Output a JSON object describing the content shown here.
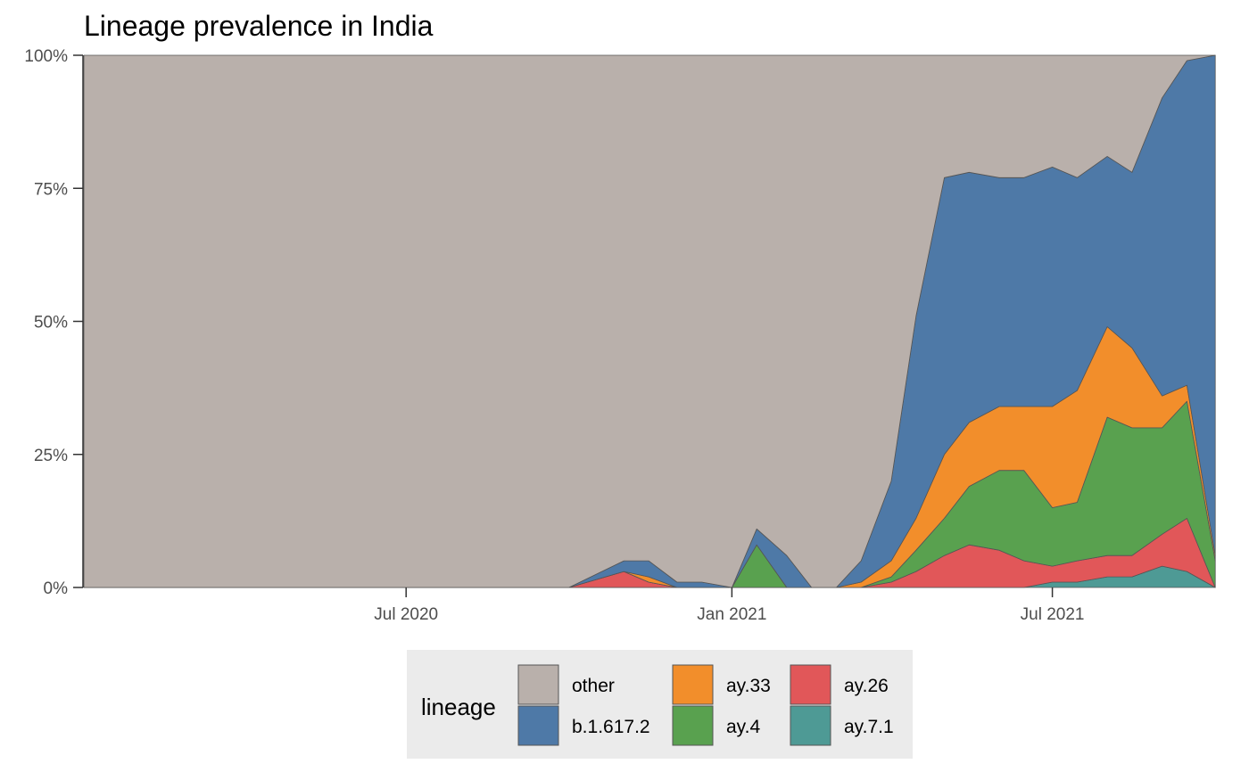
{
  "chart_data": {
    "type": "area",
    "stacked": true,
    "normalized": true,
    "title": "Lineage prevalence in India",
    "xlabel": "",
    "ylabel": "",
    "x_range": [
      "2020-01-01",
      "2021-10-12"
    ],
    "xticks": [
      {
        "date": "2020-07-01",
        "label": "Jul 2020"
      },
      {
        "date": "2021-01-01",
        "label": "Jan 2021"
      },
      {
        "date": "2021-07-01",
        "label": "Jul 2021"
      }
    ],
    "yticks": [
      {
        "value": 0,
        "label": "0%"
      },
      {
        "value": 25,
        "label": "25%"
      },
      {
        "value": 50,
        "label": "50%"
      },
      {
        "value": 75,
        "label": "75%"
      },
      {
        "value": 100,
        "label": "100%"
      }
    ],
    "ylim": [
      0,
      100
    ],
    "grid": false,
    "legend": {
      "title": "lineage",
      "position": "bottom",
      "entries": [
        {
          "name": "other",
          "color": "#B9B0AB"
        },
        {
          "name": "b.1.617.2",
          "color": "#4E79A7"
        },
        {
          "name": "ay.33",
          "color": "#F28E2B"
        },
        {
          "name": "ay.4",
          "color": "#59A14F"
        },
        {
          "name": "ay.26",
          "color": "#E15759"
        },
        {
          "name": "ay.7.1",
          "color": "#4E9A95"
        }
      ]
    },
    "x": [
      "2020-01-01",
      "2020-02-01",
      "2020-03-01",
      "2020-04-01",
      "2020-05-01",
      "2020-06-01",
      "2020-07-01",
      "2020-08-01",
      "2020-09-01",
      "2020-10-01",
      "2020-11-01",
      "2020-11-15",
      "2020-12-01",
      "2020-12-15",
      "2021-01-01",
      "2021-01-15",
      "2021-02-01",
      "2021-02-15",
      "2021-03-01",
      "2021-03-15",
      "2021-04-01",
      "2021-04-15",
      "2021-05-01",
      "2021-05-15",
      "2021-06-01",
      "2021-06-15",
      "2021-07-01",
      "2021-07-15",
      "2021-08-01",
      "2021-08-15",
      "2021-09-01",
      "2021-09-15",
      "2021-10-01"
    ],
    "series": [
      {
        "name": "ay.7.1",
        "values": [
          0,
          0,
          0,
          0,
          0,
          0,
          0,
          0,
          0,
          0,
          0,
          0,
          0,
          0,
          0,
          0,
          0,
          0,
          0,
          0,
          0,
          0,
          0,
          0,
          0,
          0,
          1,
          1,
          2,
          2,
          4,
          3,
          0
        ]
      },
      {
        "name": "ay.26",
        "values": [
          0,
          0,
          0,
          0,
          0,
          0,
          0,
          0,
          0,
          0,
          3,
          1,
          0,
          0,
          0,
          0,
          0,
          0,
          0,
          0,
          1,
          3,
          6,
          8,
          7,
          5,
          3,
          4,
          4,
          4,
          6,
          10,
          0
        ]
      },
      {
        "name": "ay.4",
        "values": [
          0,
          0,
          0,
          0,
          0,
          0,
          0,
          0,
          0,
          0,
          0,
          0,
          0,
          0,
          0,
          8,
          0,
          0,
          0,
          0,
          1,
          4,
          7,
          11,
          15,
          17,
          11,
          11,
          26,
          24,
          20,
          22,
          5
        ]
      },
      {
        "name": "ay.33",
        "values": [
          0,
          0,
          0,
          0,
          0,
          0,
          0,
          0,
          0,
          0,
          0,
          1,
          0,
          0,
          0,
          0,
          0,
          0,
          0,
          1,
          3,
          6,
          12,
          12,
          12,
          12,
          19,
          21,
          17,
          15,
          6,
          3,
          1
        ]
      },
      {
        "name": "b.1.617.2",
        "values": [
          0,
          0,
          0,
          0,
          0,
          0,
          0,
          0,
          0,
          0,
          2,
          3,
          1,
          1,
          0,
          3,
          6,
          0,
          0,
          4,
          15,
          38,
          52,
          47,
          43,
          43,
          45,
          40,
          32,
          33,
          56,
          61,
          94
        ]
      },
      {
        "name": "other",
        "values": [
          100,
          100,
          100,
          100,
          100,
          100,
          100,
          100,
          100,
          100,
          95,
          95,
          99,
          99,
          100,
          89,
          94,
          100,
          100,
          95,
          80,
          49,
          23,
          22,
          23,
          23,
          21,
          23,
          19,
          22,
          8,
          1,
          0
        ]
      }
    ]
  }
}
